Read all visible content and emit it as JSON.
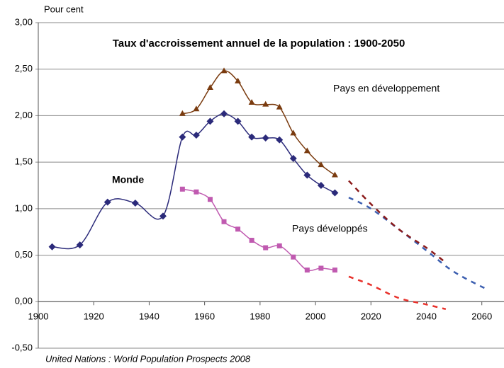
{
  "chart_data": {
    "type": "line",
    "title": "Taux d'accroissement annuel de la population : 1900-2050",
    "y_label": "Pour cent",
    "source": "United Nations : World Population Prospects 2008",
    "xlim": [
      1900,
      2068
    ],
    "xticks": [
      1900,
      1920,
      1940,
      1960,
      1980,
      2000,
      2020,
      2040,
      2060
    ],
    "ylim": [
      -0.5,
      3.0
    ],
    "yticks": [
      {
        "value": -0.5,
        "label": "-0,50"
      },
      {
        "value": 0,
        "label": "0,00"
      },
      {
        "value": 0.5,
        "label": "0,50"
      },
      {
        "value": 1,
        "label": "1,00"
      },
      {
        "value": 1.5,
        "label": "1,50"
      },
      {
        "value": 2,
        "label": "2,00"
      },
      {
        "value": 2.5,
        "label": "2,50"
      },
      {
        "value": 3,
        "label": "3,00"
      }
    ],
    "grid": true,
    "series": [
      {
        "name": "Monde",
        "color": "#2b2a7a",
        "marker": "diamond",
        "x": [
          1905,
          1915,
          1925,
          1935,
          1945,
          1952,
          1957,
          1962,
          1967,
          1972,
          1977,
          1982,
          1987,
          1992,
          1997,
          2002,
          2007
        ],
        "values": [
          0.59,
          0.61,
          1.07,
          1.06,
          0.92,
          1.77,
          1.79,
          1.94,
          2.02,
          1.94,
          1.77,
          1.76,
          1.74,
          1.54,
          1.36,
          1.25,
          1.17
        ]
      },
      {
        "name": "Pays en développement",
        "color": "#7a3b0f",
        "marker": "triangle",
        "x": [
          1952,
          1957,
          1962,
          1967,
          1972,
          1977,
          1982,
          1987,
          1992,
          1997,
          2002,
          2007
        ],
        "values": [
          2.02,
          2.07,
          2.3,
          2.48,
          2.37,
          2.14,
          2.12,
          2.09,
          1.81,
          1.62,
          1.47,
          1.36
        ]
      },
      {
        "name": "Pays développés",
        "color": "#c05ab0",
        "marker": "square",
        "x": [
          1952,
          1957,
          1962,
          1967,
          1972,
          1977,
          1982,
          1987,
          1992,
          1997,
          2002,
          2007
        ],
        "values": [
          1.21,
          1.18,
          1.1,
          0.86,
          0.78,
          0.66,
          0.58,
          0.6,
          0.48,
          0.34,
          0.36,
          0.34
        ]
      },
      {
        "color": "#3c5fb0",
        "dashed": true,
        "x": [
          2012,
          2020,
          2030,
          2040,
          2050,
          2062
        ],
        "values": [
          1.12,
          1.0,
          0.78,
          0.55,
          0.32,
          0.13
        ]
      },
      {
        "color": "#8b1a1a",
        "dashed": true,
        "x": [
          2012,
          2020,
          2030,
          2040,
          2047
        ],
        "values": [
          1.3,
          1.05,
          0.78,
          0.58,
          0.42
        ]
      },
      {
        "color": "#e8302a",
        "dashed": true,
        "x": [
          2012,
          2020,
          2030,
          2040,
          2047
        ],
        "values": [
          0.27,
          0.18,
          0.04,
          -0.03,
          -0.08
        ]
      }
    ]
  }
}
